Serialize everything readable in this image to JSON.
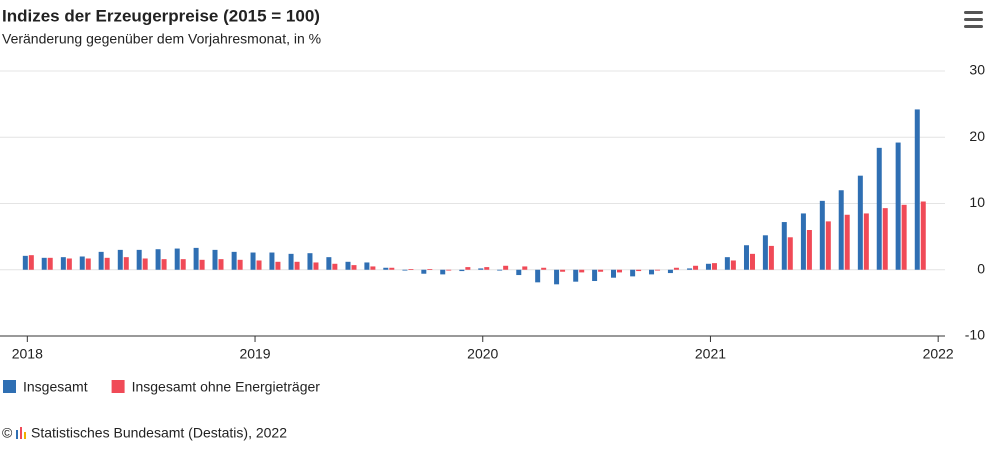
{
  "chart_data": {
    "type": "bar",
    "title": "Indizes der Erzeugerpreise (2015 = 100)",
    "subtitle": "Veränderung gegenüber dem Vorjahresmonat, in %",
    "source": "Statistisches Bundesamt (Destatis), 2022",
    "x": [
      2018.0,
      2018.083,
      2018.167,
      2018.25,
      2018.333,
      2018.417,
      2018.5,
      2018.583,
      2018.667,
      2018.75,
      2018.833,
      2018.917,
      2019.0,
      2019.083,
      2019.167,
      2019.25,
      2019.333,
      2019.417,
      2019.5,
      2019.583,
      2019.667,
      2019.75,
      2019.833,
      2019.917,
      2020.0,
      2020.083,
      2020.167,
      2020.25,
      2020.333,
      2020.417,
      2020.5,
      2020.583,
      2020.667,
      2020.75,
      2020.833,
      2020.917,
      2021.0,
      2021.083,
      2021.167,
      2021.25,
      2021.333,
      2021.417,
      2021.5,
      2021.583,
      2021.667,
      2021.75,
      2021.833,
      2021.917
    ],
    "series": [
      {
        "name": "Insgesamt",
        "color": "#2f6fb3",
        "values": [
          2.1,
          1.8,
          1.9,
          2.0,
          2.7,
          3.0,
          3.0,
          3.1,
          3.2,
          3.3,
          3.0,
          2.7,
          2.6,
          2.6,
          2.4,
          2.5,
          1.9,
          1.2,
          1.1,
          0.3,
          -0.1,
          -0.6,
          -0.7,
          -0.2,
          0.2,
          -0.1,
          -0.8,
          -1.9,
          -2.2,
          -1.8,
          -1.7,
          -1.2,
          -1.0,
          -0.7,
          -0.5,
          0.2,
          0.9,
          1.9,
          3.7,
          5.2,
          7.2,
          8.5,
          10.4,
          12.0,
          14.2,
          18.4,
          19.2,
          24.2
        ]
      },
      {
        "name": "Insgesamt ohne Energieträger",
        "color": "#f04a57",
        "values": [
          2.2,
          1.8,
          1.7,
          1.7,
          1.8,
          1.9,
          1.7,
          1.6,
          1.6,
          1.5,
          1.6,
          1.5,
          1.4,
          1.2,
          1.2,
          1.1,
          0.9,
          0.7,
          0.5,
          0.3,
          0.1,
          0.1,
          0.0,
          0.4,
          0.4,
          0.6,
          0.5,
          0.3,
          -0.3,
          -0.4,
          -0.3,
          -0.4,
          -0.2,
          0.0,
          0.3,
          0.6,
          1.0,
          1.4,
          2.4,
          3.6,
          4.9,
          6.0,
          7.3,
          8.3,
          8.5,
          9.3,
          9.8,
          10.3
        ]
      }
    ],
    "xlim": [
      2017.88,
      2022.03
    ],
    "xticks": [
      2018,
      2019,
      2020,
      2021,
      2022
    ],
    "ylim": [
      -10,
      30
    ],
    "yticks": [
      -10,
      0,
      10,
      20,
      30
    ],
    "grid": true
  }
}
